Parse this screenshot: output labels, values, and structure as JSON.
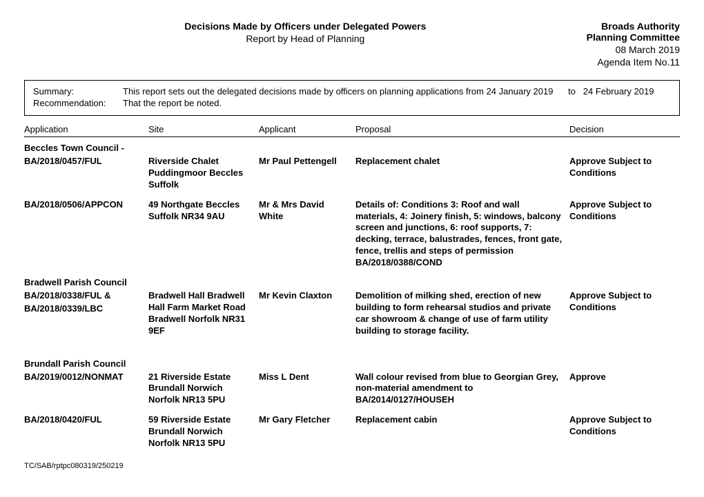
{
  "header": {
    "title": "Decisions Made by Officers under Delegated Powers",
    "subtitle": "Report by Head of Planning",
    "authority": "Broads Authority",
    "committee": "Planning Committee",
    "date": "08 March 2019",
    "agenda": "Agenda Item No.11"
  },
  "summary": {
    "label1": "Summary:",
    "text1a": "This report sets out the delegated decisions made by officers on planning applications from",
    "date_from": "24 January 2019",
    "text1b": "to",
    "date_to": "24 February 2019",
    "label2": "Recommendation:",
    "text2": "That the report be noted."
  },
  "columns": {
    "app": "Application",
    "site": "Site",
    "applicant": "Applicant",
    "proposal": "Proposal",
    "decision": "Decision"
  },
  "councils": {
    "beccles": "Beccles Town Council -",
    "bradwell": "Bradwell Parish Council",
    "brundall": "Brundall Parish Council"
  },
  "rows": {
    "r1": {
      "app": "BA/2018/0457/FUL",
      "site": "Riverside Chalet Puddingmoor Beccles Suffolk",
      "applicant": "Mr Paul Pettengell",
      "proposal": "Replacement chalet",
      "decision": "Approve Subject to Conditions"
    },
    "r2": {
      "app": "BA/2018/0506/APPCON",
      "site": "49 Northgate Beccles Suffolk NR34 9AU",
      "applicant": "Mr & Mrs David White",
      "proposal": "Details of: Conditions 3: Roof and wall materials, 4: Joinery finish, 5: windows, balcony screen and junctions, 6: roof supports, 7: decking, terrace, balustrades, fences, front gate, fence, trellis and steps of permission BA/2018/0388/COND",
      "decision": "Approve Subject to Conditions"
    },
    "r3": {
      "app1": "BA/2018/0338/FUL &",
      "app2": "BA/2018/0339/LBC",
      "site": "Bradwell Hall Bradwell Hall Farm Market Road Bradwell Norfolk NR31 9EF",
      "applicant": "Mr Kevin Claxton",
      "proposal": "Demolition of milking shed, erection of new building to form rehearsal studios and private car showroom & change of use of farm utility building to storage facility.",
      "decision": "Approve Subject to Conditions"
    },
    "r4": {
      "app": "BA/2019/0012/NONMAT",
      "site": "21 Riverside Estate Brundall Norwich Norfolk NR13 5PU",
      "applicant": "Miss L Dent",
      "proposal": "Wall colour revised from blue to Georgian Grey, non-material amendment to BA/2014/0127/HOUSEH",
      "decision": "Approve"
    },
    "r5": {
      "app": "BA/2018/0420/FUL",
      "site": "59 Riverside Estate Brundall Norwich Norfolk NR13 5PU",
      "applicant": "Mr Gary Fletcher",
      "proposal": "Replacement cabin",
      "decision": "Approve Subject to Conditions"
    }
  },
  "footer": {
    "ref": "TC/SAB/rptpc080319/250219"
  }
}
